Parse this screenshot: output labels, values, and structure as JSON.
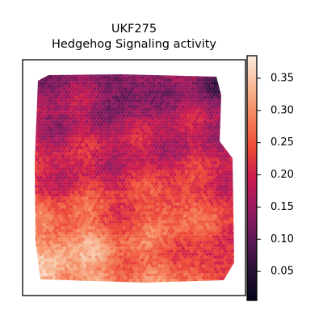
{
  "chart_data": {
    "type": "heatmap",
    "title": "UKF275",
    "subtitle": "Hedgehog Signaling activity",
    "xlabel": "",
    "ylabel": "",
    "colormap": "rocket",
    "colorbar": {
      "ticks": [
        0.05,
        0.1,
        0.15,
        0.2,
        0.25,
        0.3,
        0.35
      ],
      "tick_labels": [
        "0.05",
        "0.10",
        "0.15",
        "0.20",
        "0.25",
        "0.30",
        "0.35"
      ],
      "vmin": 0.005,
      "vmax": 0.385
    },
    "value_range_observed": [
      0.01,
      0.38
    ],
    "regions": {
      "top_band_mean": 0.14,
      "middle_mean": 0.22,
      "bottom_left_mean": 0.33,
      "bottom_right_edge_mean": 0.08
    },
    "colors": {
      "low": "#03051a",
      "mid": "#e13342",
      "high": "#faebdd"
    }
  }
}
